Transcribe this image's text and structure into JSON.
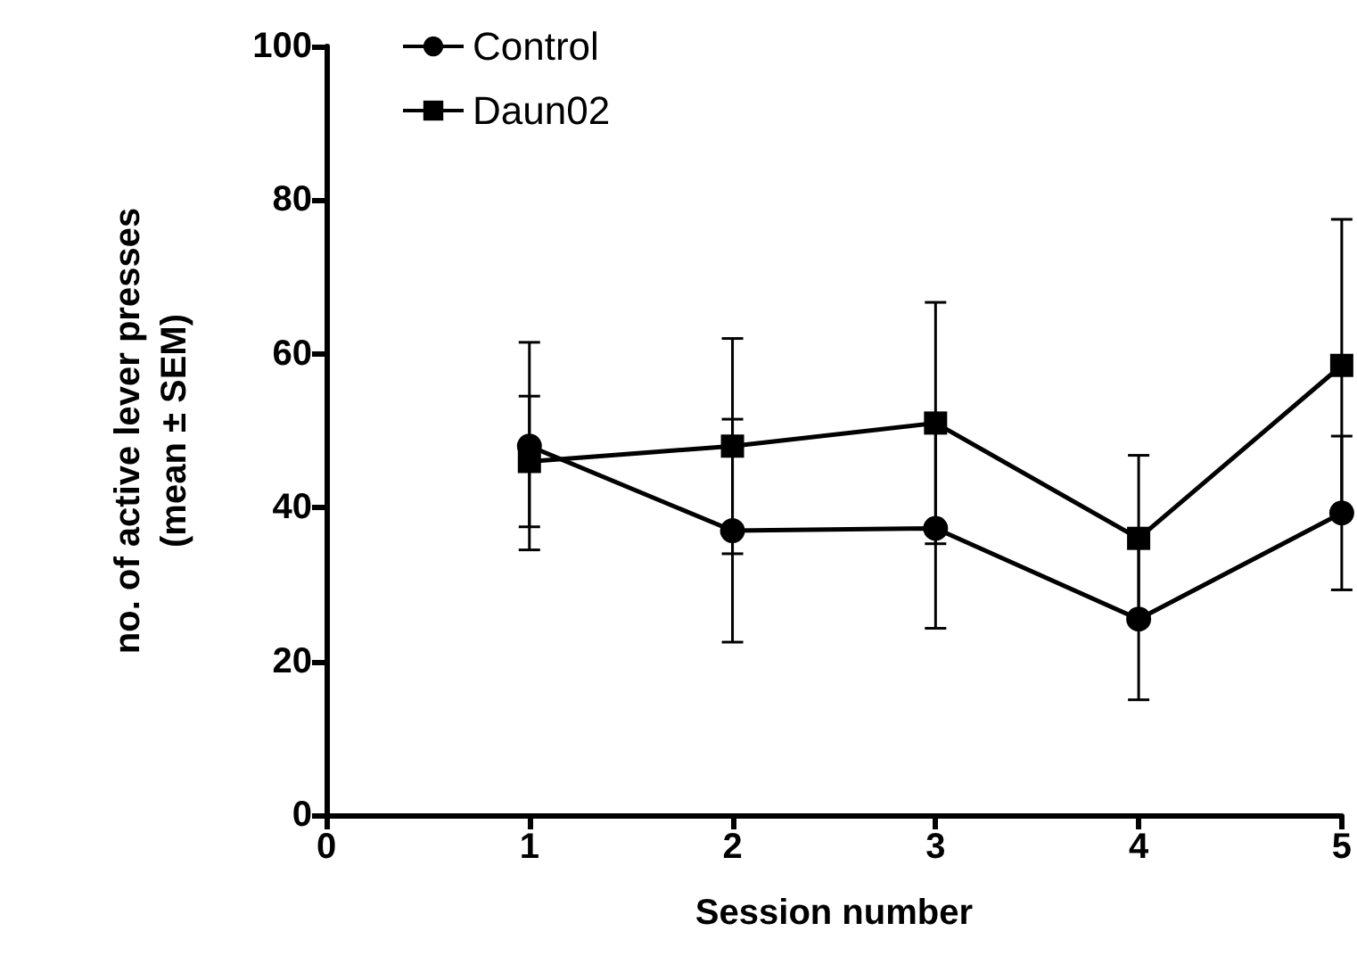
{
  "chart_data": {
    "type": "line",
    "xlabel": "Session number",
    "ylabel": "no. of active lever presses\n(mean ± SEM)",
    "x": [
      1,
      2,
      3,
      4,
      5
    ],
    "xlim": [
      0,
      5
    ],
    "xticks": [
      0,
      1,
      2,
      3,
      4,
      5
    ],
    "ylim": [
      0,
      100
    ],
    "yticks": [
      0,
      20,
      40,
      60,
      80,
      100
    ],
    "grid": false,
    "legend": "top left",
    "line_style": "solid",
    "series": [
      {
        "name": "Control",
        "color": "#000000",
        "marker": "circle",
        "values": [
          48,
          37,
          37.3,
          25.5,
          39.3
        ],
        "errors": [
          13.5,
          14.5,
          13,
          10.5,
          10
        ]
      },
      {
        "name": "Daun02",
        "color": "#000000",
        "marker": "square",
        "values": [
          46,
          48,
          51,
          36,
          58.5
        ],
        "errors": [
          8.5,
          14,
          15.7,
          10.8,
          19
        ]
      }
    ]
  }
}
